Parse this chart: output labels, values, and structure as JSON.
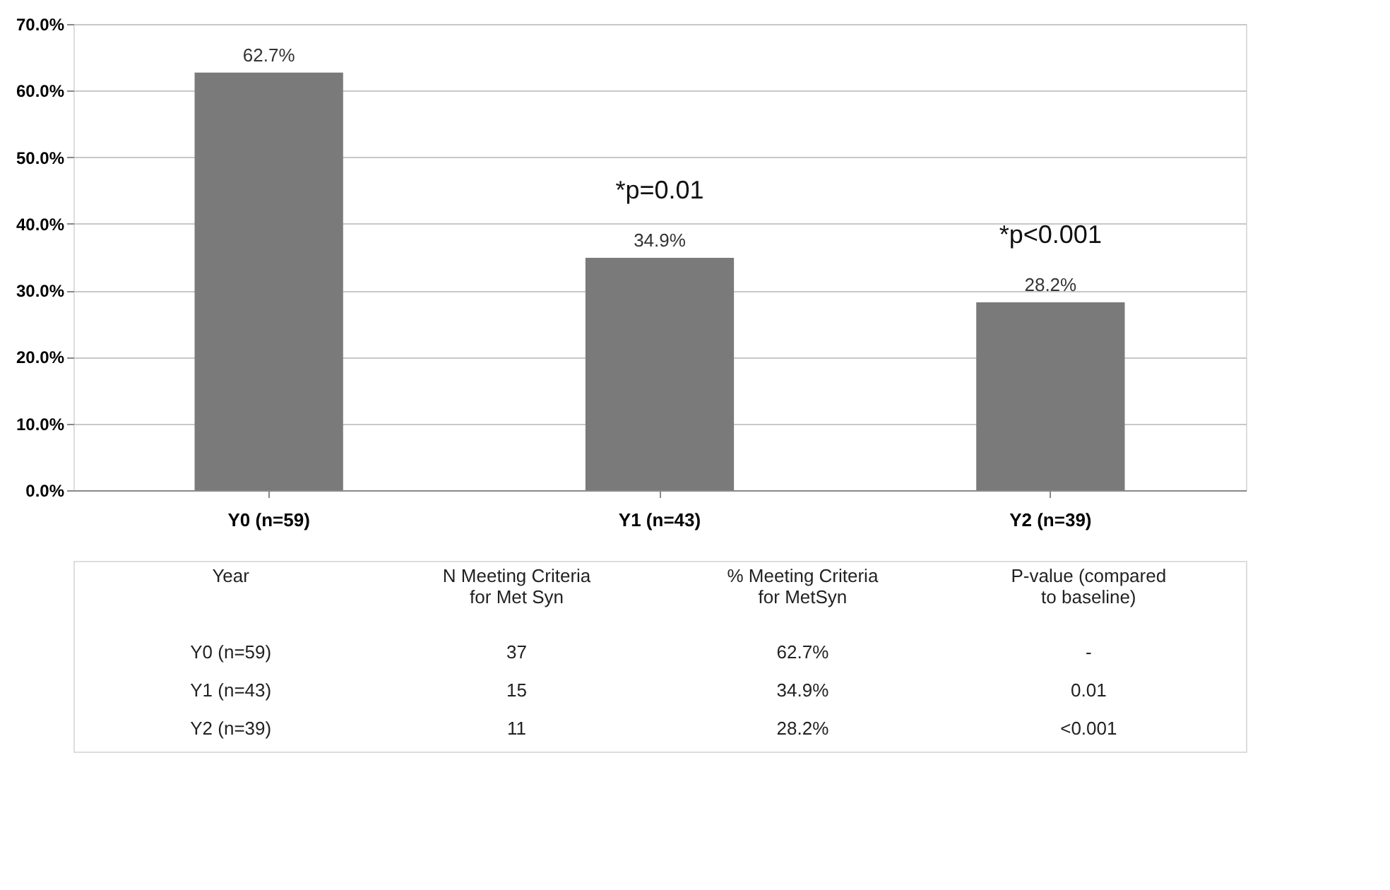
{
  "chart_data": {
    "type": "bar",
    "categories": [
      "Y0 (n=59)",
      "Y1 (n=43)",
      "Y2 (n=39)"
    ],
    "values": [
      62.7,
      34.9,
      28.2
    ],
    "value_labels": [
      "62.7%",
      "34.9%",
      "28.2%"
    ],
    "color": "#7a7a7a",
    "ylim": [
      0,
      70
    ],
    "yticks": [
      {
        "value": 0,
        "label": "0.0%"
      },
      {
        "value": 10,
        "label": "10.0%"
      },
      {
        "value": 20,
        "label": "20.0%"
      },
      {
        "value": 30,
        "label": "30.0%"
      },
      {
        "value": 40,
        "label": "40.0%"
      },
      {
        "value": 50,
        "label": "50.0%"
      },
      {
        "value": 60,
        "label": "60.0%"
      },
      {
        "value": 70,
        "label": "70.0%"
      }
    ],
    "grid": "y",
    "annotations": [
      "*p=0.01",
      "*p<0.001",
      "Year",
      "N Meeting Criteria\nfor Met Syn",
      "% Meeting Criteria\nfor MetSyn",
      "P-value (compared\nto baseline)",
      "Y0 (n=59)",
      "37",
      "62.7%",
      "-",
      "Y1 (n=43)",
      "15",
      "34.9%",
      "0.01",
      "Y2 (n=39)",
      "11",
      "28.2%",
      "<0.001"
    ]
  }
}
